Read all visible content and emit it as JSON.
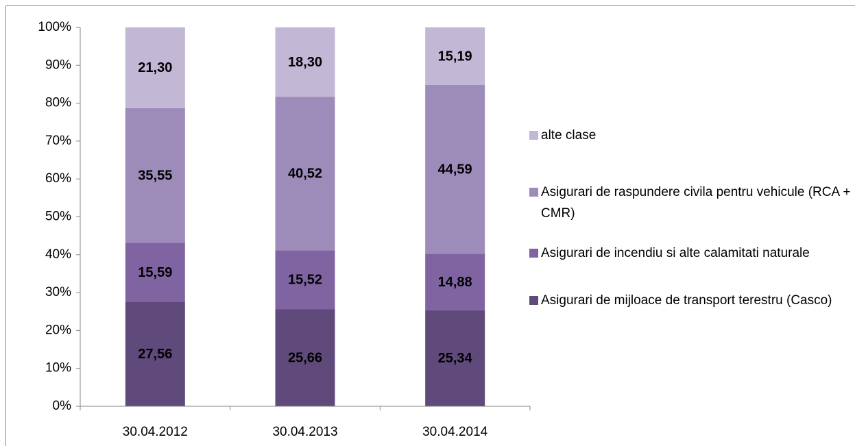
{
  "chart_data": {
    "type": "stacked_bar",
    "categories": [
      "30.04.2012",
      "30.04.2013",
      "30.04.2014"
    ],
    "series": [
      {
        "name": "Asigurari de mijloace de transport terestru (Casco)",
        "color": "#604a7b",
        "values": [
          27.56,
          25.66,
          25.34
        ],
        "value_labels": [
          "27,56",
          "25,66",
          "25,34"
        ]
      },
      {
        "name": "Asigurari de incendiu si alte calamitati naturale",
        "color": "#8064a2",
        "values": [
          15.59,
          15.52,
          14.88
        ],
        "value_labels": [
          "15,59",
          "15,52",
          "14,88"
        ]
      },
      {
        "name": "Asigurari de raspundere civila pentru vehicule (RCA + CMR)",
        "color": "#9d8bba",
        "values": [
          35.55,
          40.52,
          44.59
        ],
        "value_labels": [
          "35,55",
          "40,52",
          "44,59"
        ]
      },
      {
        "name": "alte clase",
        "color": "#c2b7d4",
        "values": [
          21.3,
          18.3,
          15.19
        ],
        "value_labels": [
          "21,30",
          "18,30",
          "15,19"
        ]
      }
    ],
    "ylim": [
      0,
      100
    ],
    "yticks": [
      {
        "value": 0,
        "label": "0%"
      },
      {
        "value": 10,
        "label": "10%"
      },
      {
        "value": 20,
        "label": "20%"
      },
      {
        "value": 30,
        "label": "30%"
      },
      {
        "value": 40,
        "label": "40%"
      },
      {
        "value": 50,
        "label": "50%"
      },
      {
        "value": 60,
        "label": "60%"
      },
      {
        "value": 70,
        "label": "70%"
      },
      {
        "value": 80,
        "label": "80%"
      },
      {
        "value": 90,
        "label": "90%"
      },
      {
        "value": 100,
        "label": "100%"
      }
    ],
    "legend": "right"
  }
}
